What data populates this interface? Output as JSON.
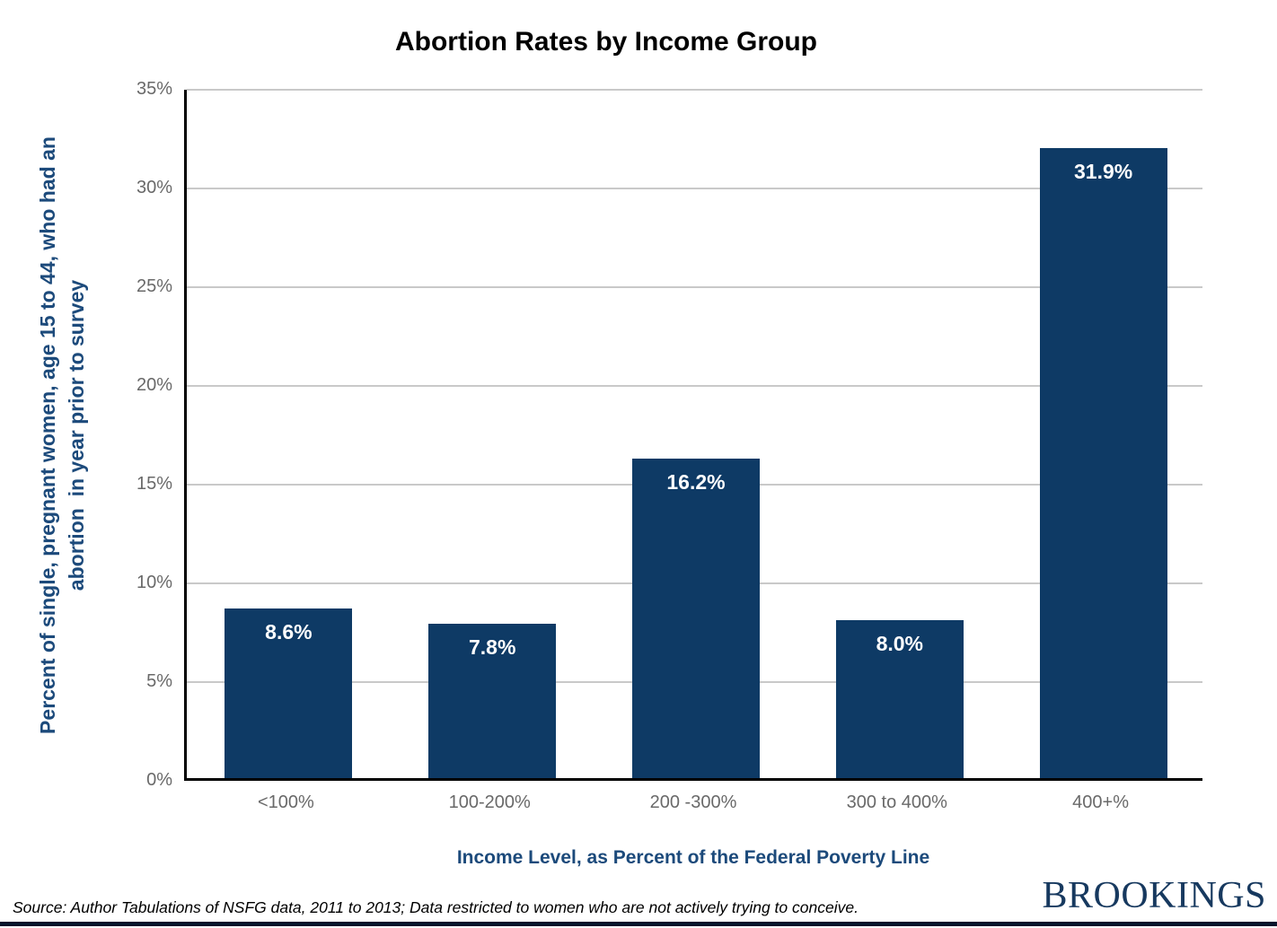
{
  "chart_data": {
    "type": "bar",
    "title": "Abortion Rates by Income Group",
    "categories": [
      "<100%",
      "100-200%",
      "200 -300%",
      "300 to 400%",
      "400+%"
    ],
    "values": [
      8.6,
      7.8,
      16.2,
      8.0,
      31.9
    ],
    "value_labels": [
      "8.6%",
      "7.8%",
      "16.2%",
      "8.0%",
      "31.9%"
    ],
    "xlabel": "Income Level, as Percent of the Federal Poverty Line",
    "ylabel": "Percent of single, pregnant women, age 15 to 44, who had an abortion in year prior to survey",
    "ylabel_lines": [
      "Percent of single, pregnant women, age 15 to 44, who had an",
      "abortion  in year prior to survey"
    ],
    "ylim": [
      0,
      35
    ],
    "ytick_step": 5,
    "yticks": [
      "0%",
      "5%",
      "10%",
      "15%",
      "20%",
      "25%",
      "30%",
      "35%"
    ],
    "grid": true,
    "legend": false
  },
  "footer": {
    "source": "Source: Author Tabulations of NSFG data, 2011 to 2013; Data restricted to women who are not actively trying to conceive.",
    "brand": "BROOKINGS"
  },
  "colors": {
    "bar": "#0e3a65",
    "axis_label": "#1c4a7b",
    "tick": "#696969",
    "gridline": "#c9c9c9",
    "axis_line": "#000000",
    "brand": "#17395f",
    "footer_bar": "#03152b"
  }
}
